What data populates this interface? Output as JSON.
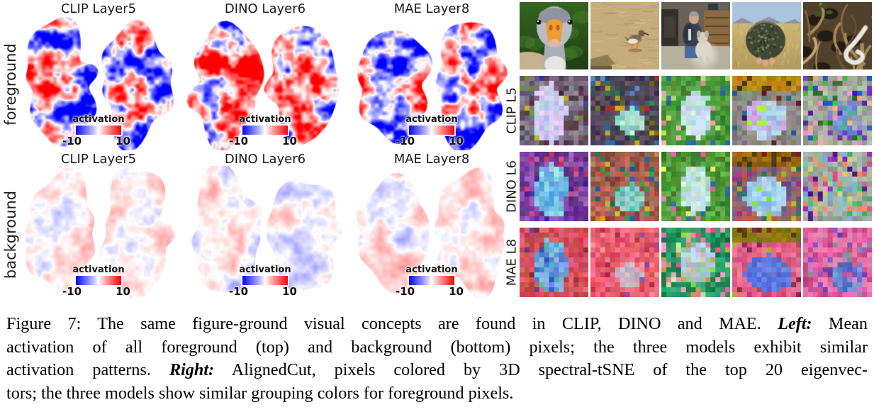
{
  "left_panel": {
    "row_labels": [
      "foreground",
      "background"
    ],
    "column_titles": [
      "CLIP Layer5",
      "DINO Layer6",
      "MAE Layer8"
    ],
    "colorbar": {
      "label": "activation",
      "min": "-10",
      "max": "10",
      "negative_color": "#0808f2",
      "zero_color": "#ffffff",
      "positive_color": "#f20808"
    }
  },
  "right_panel": {
    "row_labels": [
      "CLIP L5",
      "DINO L6",
      "MAE L8"
    ],
    "photo_subjects": [
      "goose head close-up",
      "shorebird walking on sand",
      "person kneeling with white dog indoors",
      "turtle shell held over grassland",
      "white snake on branches"
    ],
    "cluster_rows": [
      {
        "cells": [
          {
            "bg": [
              "#8d8292",
              "#7b7184",
              "#675a6e",
              "#55414e"
            ],
            "ac": [
              "#5a2340",
              "#274a9e",
              "#6b8c2a",
              "#b8b81a"
            ],
            "fg": [
              "#bcd4ec",
              "#c6d9ee",
              "#cdbbee",
              "#d9c9f2",
              "#b0c4ee",
              "#e0d0f4"
            ],
            "blob": [
              5.6,
              7.2,
              3.3,
              5.8
            ],
            "mix": 0.13
          },
          {
            "bg": [
              "#544e60",
              "#484252",
              "#5c5468",
              "#3c384a"
            ],
            "ac": [
              "#b03030",
              "#2a6fae",
              "#c8a020",
              "#2a7a40",
              "#7a6818",
              "#4a8ad0"
            ],
            "fg": [
              "#8fd8c0",
              "#a8e0cc",
              "#7cc8b4",
              "#b8e8d8"
            ],
            "blob": [
              7.6,
              8.6,
              2.9,
              2.6
            ],
            "mix": 0.2
          },
          {
            "bg": [
              "#4f9a3f",
              "#429334",
              "#5ca84c",
              "#3a8a2e"
            ],
            "ac": [
              "#e89090",
              "#f0a8a8",
              "#b8e060",
              "#2a6a9a"
            ],
            "fg": [
              "#cfe2f2",
              "#d8e8f4",
              "#bcd8ea",
              "#a8e0c8",
              "#c8e8e0"
            ],
            "blob": [
              6.6,
              7.4,
              3.1,
              4.6
            ],
            "mix": 0.12
          },
          {
            "top": [
              "#b8860b",
              "#a87a10",
              "#c2921a"
            ],
            "topRows": 3,
            "bg": [
              "#8d8a86",
              "#7b7876",
              "#98948e"
            ],
            "ac": [
              "#5a2340",
              "#2a6a9a",
              "#1f5f94",
              "#6a1a2a"
            ],
            "fg": [
              "#a9cde9",
              "#b8d8ee",
              "#c9a9ec",
              "#d1b8f0",
              "#99c2e6",
              "#d898d8"
            ],
            "fgac": [
              "#aaee22"
            ],
            "blob": [
              6.4,
              8.2,
              4.1,
              4.0
            ],
            "mix": 0.16
          },
          {
            "bg": [
              "#9aa494",
              "#8f998a",
              "#a5afa0",
              "#b2bcae"
            ],
            "ac": [
              "#7733cc",
              "#5522aa",
              "#ee99cc",
              "#ffb090",
              "#44bb33",
              "#2a6a2a",
              "#2255cc"
            ],
            "fg": [
              "#7f97dd",
              "#8aa0e0",
              "#8878cc",
              "#6a88d4",
              "#55aaa0"
            ],
            "blob": [
              8.2,
              8.0,
              3.4,
              3.6
            ],
            "mix": 0.3,
            "hollow": 0.35
          }
        ]
      },
      {
        "cells": [
          {
            "bg": [
              "#7a3f9f",
              "#6a3590",
              "#8a4aae",
              "#5c2d80",
              "#9a5abe"
            ],
            "ac": [
              "#c03060",
              "#d84080",
              "#4a2a9a"
            ],
            "fg": [
              "#78c8e8",
              "#88d4ec",
              "#6ab8e0",
              "#55a8da",
              "#98e0e8",
              "#70a0e0"
            ],
            "blob": [
              5.8,
              7.2,
              3.4,
              5.6
            ],
            "mix": 0.12
          },
          {
            "bg": [
              "#b06050",
              "#a05444",
              "#c07060",
              "#8a463a",
              "#96685a"
            ],
            "ac": [
              "#30a050",
              "#2858b0",
              "#c8b820",
              "#e05050",
              "#207070"
            ],
            "fg": [
              "#74c8b8",
              "#84d4c4",
              "#64b8a8",
              "#98dccc"
            ],
            "blob": [
              7.6,
              8.8,
              3.1,
              2.9
            ],
            "mix": 0.2
          },
          {
            "bg": [
              "#55a23d",
              "#47922f",
              "#66b24e",
              "#3a8228"
            ],
            "ac": [
              "#e858a0",
              "#f070b0",
              "#e8e858",
              "#2a6aaa"
            ],
            "fg": [
              "#cce6da",
              "#d8eee4",
              "#bcdce8",
              "#c2e2f0",
              "#a8d8c0"
            ],
            "blob": [
              6.6,
              7.2,
              3.2,
              4.8
            ],
            "mix": 0.14
          },
          {
            "top": [
              "#9a6a08",
              "#8a5e06",
              "#a87612"
            ],
            "topRows": 3,
            "bg": [
              "#a06858",
              "#8a6878",
              "#7a5a8a",
              "#98665e",
              "#6a4a7a"
            ],
            "ac": [
              "#2a7a6a",
              "#b8b830",
              "#c05828",
              "#b83088"
            ],
            "fg": [
              "#9ac8e8",
              "#a8d4ec",
              "#8ab8e0",
              "#b4dcf0"
            ],
            "fgac": [
              "#88dd33"
            ],
            "blob": [
              6.4,
              8.6,
              4.4,
              3.9
            ],
            "mix": 0.2
          },
          {
            "bg": [
              "#9aa89a",
              "#8f9d8f",
              "#a5b3a5",
              "#b0baae"
            ],
            "ac": [
              "#ee99bb",
              "#8833bb",
              "#66ccaa",
              "#cccc66",
              "#88aadd",
              "#551a88",
              "#ff8855",
              "#44bb66",
              "#dd5588"
            ],
            "fg": [
              "#70b8c8",
              "#80c4d0",
              "#88aacc",
              "#99bbaa"
            ],
            "blob": [
              7.8,
              7.6,
              3.0,
              3.2
            ],
            "mix": 0.45,
            "hollow": 0.4
          }
        ]
      },
      {
        "cells": [
          {
            "bg": [
              "#dd4f63",
              "#cc3f53",
              "#e86276",
              "#c04a40",
              "#d85858"
            ],
            "ac": [
              "#8a2a3a",
              "#6a3a8a"
            ],
            "fg": [
              "#5a8ad8",
              "#6a9ae0",
              "#4a7ace",
              "#88b0e8",
              "#3a5ac8",
              "#7ac8e0",
              "#50b0b8"
            ],
            "blob": [
              5.9,
              7.4,
              3.7,
              5.2
            ],
            "mix": 0.1
          },
          {
            "bg": [
              "#ee6678",
              "#e05668",
              "#f87688",
              "#d84a5c",
              "#f06070"
            ],
            "ac": [
              "#b83040",
              "#f890a0",
              "#8a4aae"
            ],
            "fg": [
              "#c8a8b8",
              "#bab0c0",
              "#d0b8c0",
              "#c0aab4"
            ],
            "blob": [
              7.4,
              9.0,
              2.7,
              2.3
            ],
            "mix": 0.12
          },
          {
            "bg": [
              "#1f8858",
              "#2a9a66",
              "#177a4c",
              "#33a873"
            ],
            "ac": [
              "#f080a8",
              "#f8a0c0",
              "#e85890",
              "#88e060",
              "#caa050",
              "#c8e8a0"
            ],
            "fg": [
              "#a8c0e8",
              "#c0d0f0",
              "#98c8b0",
              "#d8c0b8",
              "#b8d8e8"
            ],
            "blob": [
              6.6,
              6.8,
              3.5,
              4.4
            ],
            "mix": 0.3
          },
          {
            "top": [
              "#8a7a10",
              "#7a6c0c",
              "#968418"
            ],
            "topRows": 3,
            "bg": [
              "#e8688c",
              "#d8587c",
              "#f0789c",
              "#c84870"
            ],
            "ac": [
              "#8a2a4a",
              "#b0b828"
            ],
            "fg": [
              "#5a72dd",
              "#5068d5",
              "#6a82e5",
              "#6078e0"
            ],
            "blob": [
              6.8,
              8.8,
              4.7,
              3.7
            ],
            "mix": 0.12
          },
          {
            "bg": [
              "#e868a8",
              "#d85898",
              "#f078b8",
              "#c04888",
              "#e080b0"
            ],
            "ac": [
              "#8858c8",
              "#6838a8",
              "#aa88cc",
              "#888898"
            ],
            "fg": [
              "#6078c8",
              "#7088d4",
              "#5068c0",
              "#8098d8"
            ],
            "blob": [
              8.6,
              9.4,
              3.5,
              3.1
            ],
            "mix": 0.25,
            "hollow": 0.2
          }
        ]
      }
    ]
  },
  "caption": {
    "lines": [
      {
        "segments": [
          {
            "t": "Figure 7: The same figure-ground visual concepts are found in CLIP, DINO and MAE. "
          },
          {
            "t": "Left:"
          },
          {
            "t": " Mean"
          }
        ]
      },
      {
        "segments": [
          {
            "t": "activation of all foreground (top) and background (bottom) pixels; the three models exhibit similar"
          }
        ]
      },
      {
        "segments": [
          {
            "t": "activation patterns. "
          },
          {
            "t": "Right:"
          },
          {
            "t": " AlignedCut, pixels colored by 3D spectral-tSNE of the top 20 eigenvec-"
          }
        ]
      },
      {
        "segments": [
          {
            "t": "tors; the three models show similar grouping colors for foreground pixels."
          }
        ]
      }
    ]
  }
}
